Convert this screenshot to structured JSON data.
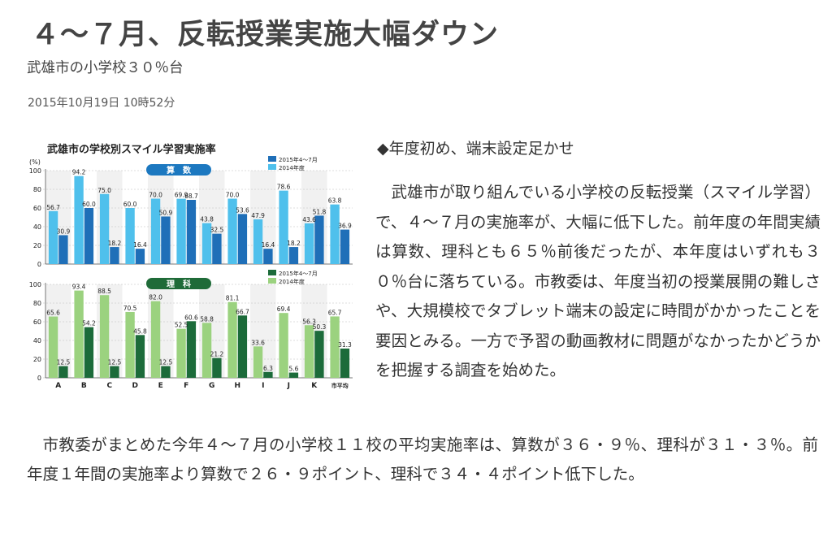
{
  "article": {
    "title": "４～７月、反転授業実施大幅ダウン",
    "subtitle": "武雄市の小学校３０％台",
    "date": "2015年10月19日 10時52分",
    "section_heading": "◆年度初め、端末設定足かせ",
    "paragraph1": "武雄市が取り組んでいる小学校の反転授業（スマイル学習）で、４～７月の実施率が、大幅に低下した。前年度の年間実績は算数、理科とも６５％前後だったが、本年度はいずれも３０％台に落ちている。市教委は、年度当初の授業展開の難しさや、大規模校でタブレット端末の設定に時間がかかったことを要因とみる。一方で予習の動画教材に問題がなかったかどうかを把握する調査を始めた。",
    "paragraph2": "市教委がまとめた今年４～７月の小学校１１校の平均実施率は、算数が３６・９％、理科が３１・３％。前年度１年間の実施率より算数で２６・９ポイント、理科で３４・４ポイント低下した。"
  },
  "colors": {
    "math_2015": "#1f6fb8",
    "math_2014": "#4fc0ec",
    "sci_2015": "#1c6b3a",
    "sci_2014": "#9bd27f",
    "math_badge": "#1c78c0",
    "sci_badge": "#1f6b38"
  },
  "chart_data": [
    {
      "type": "bar",
      "title": "武雄市の学校別スマイル学習実施率",
      "subject": "算　数",
      "ylabel": "(%)",
      "ylim": [
        0,
        100
      ],
      "yticks": [
        0,
        20,
        40,
        60,
        80,
        100
      ],
      "categories": [
        "A",
        "B",
        "C",
        "D",
        "E",
        "F",
        "G",
        "H",
        "I",
        "J",
        "K",
        "市平均"
      ],
      "series": [
        {
          "name": "2014年度",
          "values": [
            56.7,
            94.2,
            75.0,
            60.0,
            70.0,
            69.9,
            43.8,
            70.0,
            47.9,
            78.6,
            43.6,
            63.8
          ],
          "labels": [
            "56.7",
            "94.2",
            "75.0",
            "60.0",
            "70.0",
            "69.9",
            "43.8",
            "70.0",
            "47.9",
            "78.6",
            "43.6",
            "63.8"
          ]
        },
        {
          "name": "2015年4～7月",
          "values": [
            30.9,
            60.0,
            18.2,
            16.4,
            50.9,
            68.7,
            32.5,
            53.6,
            16.4,
            18.2,
            51.8,
            36.9
          ],
          "labels": [
            "30.9",
            "60.0",
            "18.2",
            "16.4",
            "50.9",
            "68.7",
            "32.5",
            "53.6",
            "16.4",
            "18.2",
            "51.8",
            "36.9"
          ]
        }
      ],
      "legend": [
        "2015年4～7月",
        "2014年度"
      ]
    },
    {
      "type": "bar",
      "subject": "理　科",
      "ylim": [
        0,
        100
      ],
      "yticks": [
        0,
        20,
        40,
        60,
        80,
        100
      ],
      "categories": [
        "A",
        "B",
        "C",
        "D",
        "E",
        "F",
        "G",
        "H",
        "I",
        "J",
        "K",
        "市平均"
      ],
      "series": [
        {
          "name": "2014年度",
          "values": [
            65.6,
            93.4,
            88.5,
            70.5,
            82.0,
            52.5,
            58.8,
            81.1,
            33.6,
            69.4,
            56.3,
            65.7
          ],
          "labels": [
            "65.6",
            "93.4",
            "88.5",
            "70.5",
            "82.0",
            "52.5",
            "58.8",
            "81.1",
            "33.6",
            "69.4",
            "56.3",
            "65.7"
          ]
        },
        {
          "name": "2015年4～7月",
          "values": [
            12.5,
            54.2,
            12.5,
            45.8,
            12.5,
            60.6,
            21.2,
            66.7,
            6.3,
            5.6,
            50.3,
            31.3
          ],
          "labels": [
            "12.5",
            "54.2",
            "12.5",
            "45.8",
            "12.5",
            "60.6",
            "21.2",
            "66.7",
            "6.3",
            "5.6",
            "50.3",
            "31.3"
          ]
        }
      ],
      "legend": [
        "2015年4～7月",
        "2014年度"
      ]
    }
  ]
}
